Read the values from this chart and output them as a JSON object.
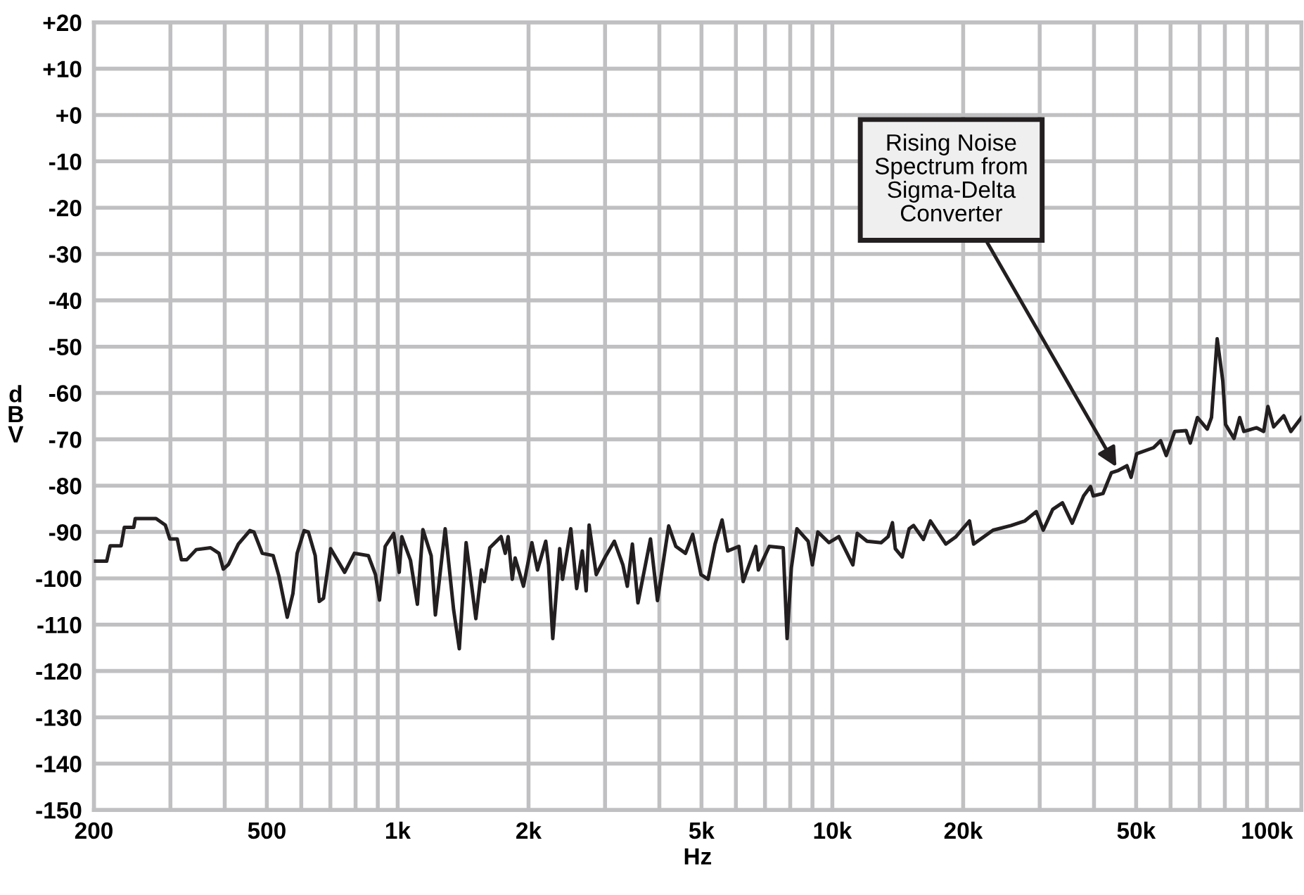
{
  "chart_data": {
    "type": "line",
    "xlabel": "Hz",
    "ylabel": "dBV",
    "log": "x",
    "grid": true,
    "marker": "none",
    "line_style": "solid",
    "xlim": [
      200,
      120000
    ],
    "ylim": [
      -150,
      20
    ],
    "xticks": [
      {
        "value": 200,
        "label": "200"
      },
      {
        "value": 300,
        "label": null
      },
      {
        "value": 400,
        "label": null
      },
      {
        "value": 500,
        "label": "500"
      },
      {
        "value": 600,
        "label": null
      },
      {
        "value": 700,
        "label": null
      },
      {
        "value": 800,
        "label": null
      },
      {
        "value": 900,
        "label": null
      },
      {
        "value": 1000,
        "label": "1k"
      },
      {
        "value": 2000,
        "label": "2k"
      },
      {
        "value": 3000,
        "label": null
      },
      {
        "value": 4000,
        "label": null
      },
      {
        "value": 5000,
        "label": "5k"
      },
      {
        "value": 6000,
        "label": null
      },
      {
        "value": 7000,
        "label": null
      },
      {
        "value": 8000,
        "label": null
      },
      {
        "value": 9000,
        "label": null
      },
      {
        "value": 10000,
        "label": "10k"
      },
      {
        "value": 20000,
        "label": "20k"
      },
      {
        "value": 30000,
        "label": null
      },
      {
        "value": 40000,
        "label": null
      },
      {
        "value": 50000,
        "label": "50k"
      },
      {
        "value": 60000,
        "label": null
      },
      {
        "value": 70000,
        "label": null
      },
      {
        "value": 80000,
        "label": null
      },
      {
        "value": 90000,
        "label": null
      },
      {
        "value": 100000,
        "label": "100k"
      }
    ],
    "yticks": [
      {
        "value": 20,
        "label": "+20"
      },
      {
        "value": 10,
        "label": "+10"
      },
      {
        "value": 0,
        "label": "+0"
      },
      -10,
      -20,
      -30,
      -40,
      -50,
      -60,
      -70,
      -80,
      -90,
      -100,
      -110,
      -120,
      -130,
      -140,
      -150
    ],
    "annotations": [
      {
        "text": "Rising Noise\nSpectrum from\nSigma-Delta\nConverter",
        "x": 45520,
        "y": -76.7
      }
    ],
    "series": [
      {
        "color": "#231f20",
        "x": [
          200,
          214,
          218,
          231,
          235,
          247,
          249,
          278,
          292,
          299,
          311,
          318,
          327,
          344,
          371,
          388,
          397,
          408,
          430,
          457,
          467,
          488,
          517,
          533,
          557,
          574,
          587,
          609,
          623,
          646,
          660,
          675,
          701,
          755,
          795,
          856,
          889,
          908,
          936,
          979,
          1008,
          1022,
          1070,
          1110,
          1143,
          1194,
          1221,
          1286,
          1345,
          1386,
          1437,
          1513,
          1559,
          1582,
          1629,
          1729,
          1768,
          1795,
          1835,
          1863,
          1947,
          2036,
          2097,
          2191,
          2224,
          2274,
          2359,
          2395,
          2502,
          2581,
          2659,
          2714,
          2757,
          2863,
          3014,
          3151,
          3297,
          3375,
          3467,
          3571,
          3816,
          3960,
          4202,
          4364,
          4594,
          4772,
          4986,
          5176,
          5373,
          5576,
          5743,
          6096,
          6234,
          6665,
          6758,
          7159,
          7708,
          7870,
          8049,
          8288,
          8797,
          8996,
          9262,
          9825,
          10350,
          11150,
          11410,
          12020,
          12950,
          13440,
          13750,
          13960,
          14480,
          15020,
          15380,
          16200,
          16810,
          18240,
          19210,
          20680,
          21140,
          23430,
          25780,
          27740,
          29450,
          30560,
          32150,
          33840,
          35640,
          37860,
          39270,
          39840,
          41940,
          43850,
          45520,
          47610,
          48670,
          50150,
          54840,
          56930,
          58650,
          61340,
          65140,
          66620,
          69180,
          72870,
          74530,
          76810,
          79130,
          80310,
          83980,
          86530,
          88480,
          94670,
          98270,
          100500,
          103600,
          109300,
          113500,
          120000
        ],
        "values": [
          -96.3,
          -96.3,
          -93,
          -93,
          -89,
          -89,
          -87.1,
          -87.1,
          -88.5,
          -91.5,
          -91.5,
          -96,
          -96,
          -93.8,
          -93.4,
          -94.6,
          -98,
          -97,
          -92.6,
          -89.7,
          -90,
          -94.6,
          -95.1,
          -99.5,
          -108.4,
          -103.3,
          -94.6,
          -89.7,
          -90,
          -95.1,
          -105,
          -104.3,
          -93.6,
          -98.7,
          -94.6,
          -95.1,
          -99.2,
          -104.7,
          -93.1,
          -90.3,
          -98.7,
          -91,
          -96.1,
          -105.6,
          -89.5,
          -95.1,
          -107.9,
          -89.3,
          -106.8,
          -115.2,
          -92.3,
          -108.7,
          -98.2,
          -100.7,
          -93.4,
          -91,
          -94.6,
          -91,
          -100.2,
          -95.6,
          -101.7,
          -92.3,
          -98.2,
          -92,
          -97.1,
          -113,
          -93.6,
          -100.2,
          -89.3,
          -102.2,
          -94.1,
          -102.7,
          -88.5,
          -99.2,
          -95.1,
          -92,
          -97.1,
          -101.7,
          -92.6,
          -105.3,
          -91.5,
          -104.8,
          -88.7,
          -93.1,
          -94.6,
          -90.5,
          -99.2,
          -100.2,
          -92.6,
          -87.4,
          -94.1,
          -93.1,
          -100.7,
          -93.1,
          -98.2,
          -93.1,
          -93.4,
          -113,
          -97.7,
          -89.3,
          -92,
          -97.1,
          -90,
          -92.3,
          -91,
          -97.1,
          -90.3,
          -92,
          -92.3,
          -91,
          -88,
          -93.6,
          -95.4,
          -89.3,
          -88.6,
          -91.6,
          -87.6,
          -92.6,
          -91.1,
          -87.6,
          -92.6,
          -89.6,
          -88.6,
          -87.6,
          -85.6,
          -89.6,
          -85.1,
          -83.7,
          -88.1,
          -82.2,
          -80.2,
          -82.2,
          -81.7,
          -77.2,
          -76.7,
          -75.7,
          -78.2,
          -73.1,
          -71.8,
          -70.3,
          -73.5,
          -68.3,
          -68.1,
          -70.8,
          -65.3,
          -67.8,
          -65.3,
          -48.3,
          -57.4,
          -66.8,
          -69.8,
          -65.3,
          -68.3,
          -67.5,
          -68.3,
          -62.9,
          -67.3,
          -64.9,
          -68.3,
          -65.3
        ]
      }
    ]
  }
}
